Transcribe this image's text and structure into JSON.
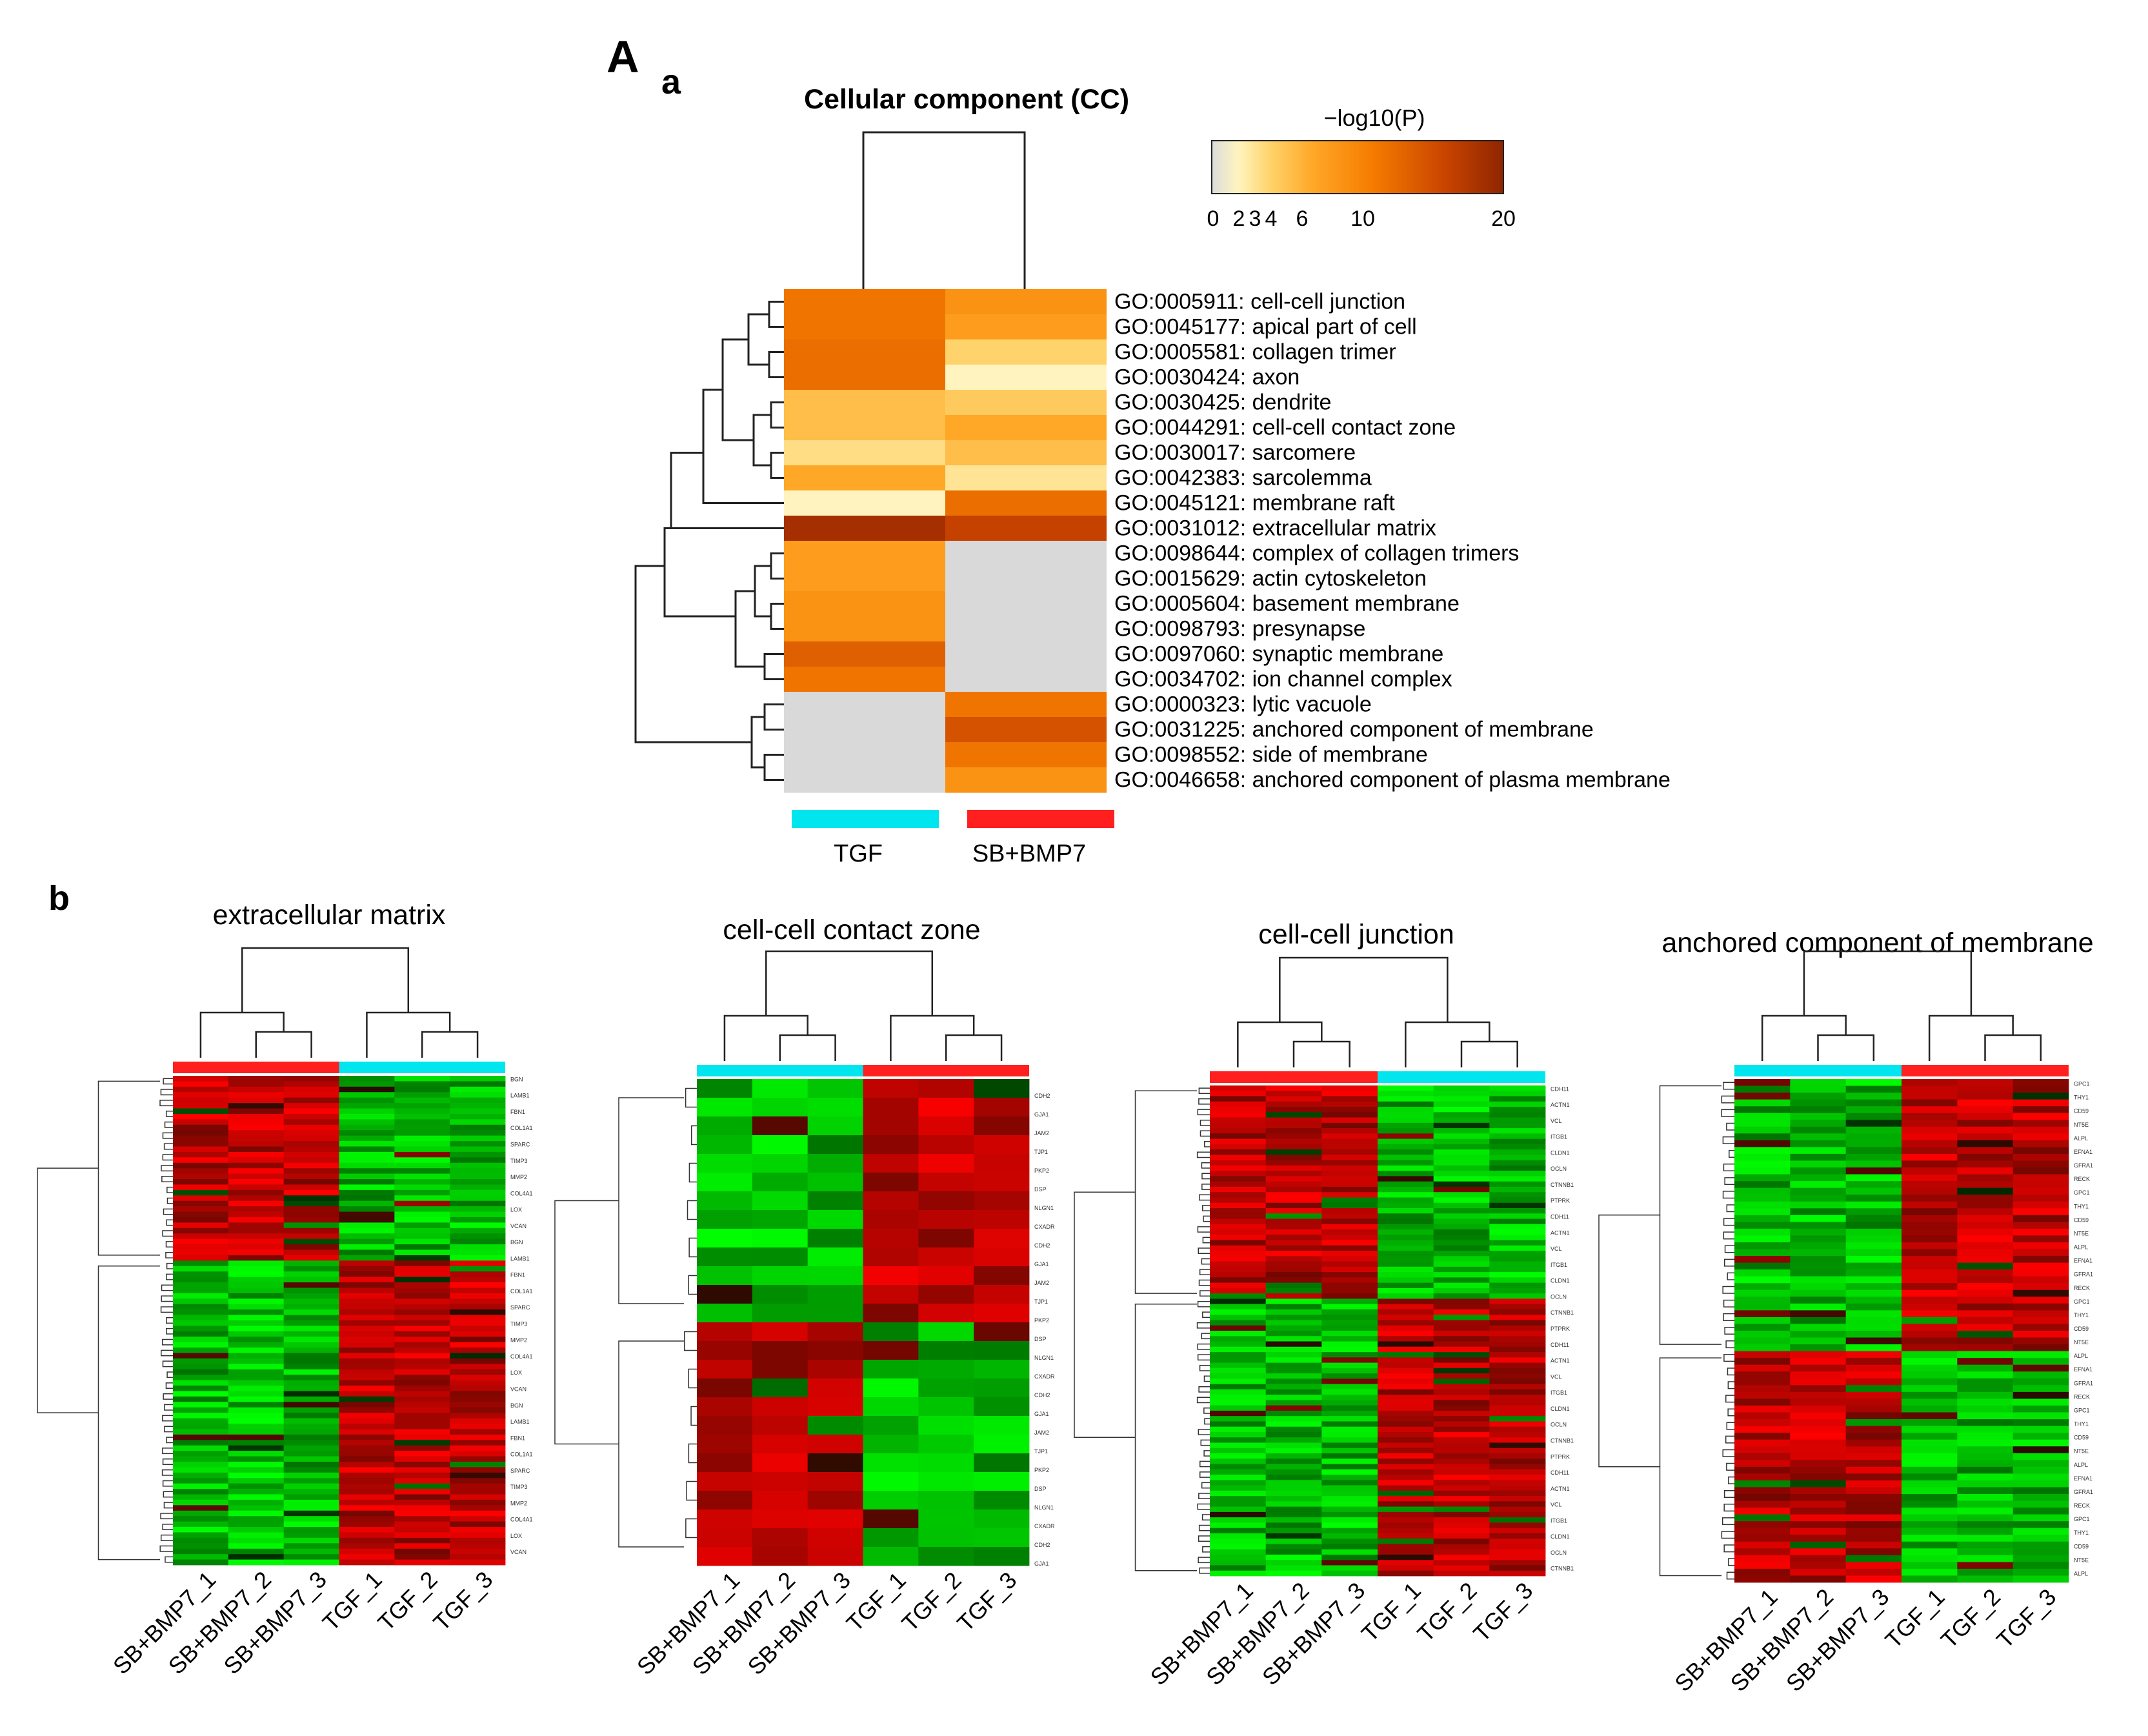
{
  "figure": {
    "panel_A": "A",
    "panel_a": "a",
    "panel_b": "b"
  },
  "chart_data": [
    {
      "type": "heatmap",
      "title": "Cellular component (CC)",
      "colorbar": {
        "title": "−log10(P)",
        "ticks": [
          0,
          2,
          3,
          4,
          6,
          10,
          20
        ],
        "colors": [
          "#dcdcdc",
          "#fff4c0",
          "#ffd36b",
          "#ffa726",
          "#f57c00",
          "#c94400",
          "#9c2a00"
        ]
      },
      "columns": [
        "TGF",
        "SB+BMP7"
      ],
      "column_colors": [
        "#00e5ee",
        "#ff1f1f"
      ],
      "na_color": "#d9d9d9",
      "rows": [
        {
          "label": "GO:0005911: cell-cell junction",
          "values": [
            6.5,
            5.0
          ]
        },
        {
          "label": "GO:0045177: apical part of cell",
          "values": [
            6.5,
            4.5
          ]
        },
        {
          "label": "GO:0005581: collagen trimer",
          "values": [
            7.0,
            3.0
          ]
        },
        {
          "label": "GO:0030424: axon",
          "values": [
            7.0,
            2.0
          ]
        },
        {
          "label": "GO:0030425: dendrite",
          "values": [
            3.5,
            3.2
          ]
        },
        {
          "label": "GO:0044291: cell-cell contact zone",
          "values": [
            3.5,
            4.0
          ]
        },
        {
          "label": "GO:0030017: sarcomere",
          "values": [
            2.7,
            3.5
          ]
        },
        {
          "label": "GO:0042383: sarcolemma",
          "values": [
            4.0,
            2.5
          ]
        },
        {
          "label": "GO:0045121: membrane raft",
          "values": [
            2.0,
            7.0
          ]
        },
        {
          "label": "GO:0031012: extracellular matrix",
          "values": [
            18.0,
            11.0
          ]
        },
        {
          "label": "GO:0098644: complex of collagen trimers",
          "values": [
            4.5,
            null
          ]
        },
        {
          "label": "GO:0015629: actin cytoskeleton",
          "values": [
            4.5,
            null
          ]
        },
        {
          "label": "GO:0005604: basement membrane",
          "values": [
            5.0,
            null
          ]
        },
        {
          "label": "GO:0098793: presynapse",
          "values": [
            5.0,
            null
          ]
        },
        {
          "label": "GO:0097060: synaptic membrane",
          "values": [
            8.0,
            null
          ]
        },
        {
          "label": "GO:0034702: ion channel complex",
          "values": [
            6.5,
            null
          ]
        },
        {
          "label": "GO:0000323: lytic vacuole",
          "values": [
            null,
            6.5
          ]
        },
        {
          "label": "GO:0031225: anchored component of membrane",
          "values": [
            null,
            9.0
          ]
        },
        {
          "label": "GO:0098552: side of membrane",
          "values": [
            null,
            6.5
          ]
        },
        {
          "label": "GO:0046658: anchored component of plasma membrane",
          "values": [
            null,
            5.0
          ]
        }
      ]
    },
    {
      "type": "heatmap",
      "title": "extracellular matrix",
      "samples": [
        "SB+BMP7_1",
        "SB+BMP7_2",
        "SB+BMP7_3",
        "TGF_1",
        "TGF_2",
        "TGF_3"
      ],
      "group_bar": [
        "red",
        "cyan"
      ],
      "row_label_examples": [
        "BGN",
        "LAMB1",
        "FBN1",
        "COL1A1",
        "SPARC",
        "TIMP3",
        "MMP2",
        "COL4A1",
        "LOX",
        "VCAN"
      ],
      "blocks": [
        {
          "rows": 34,
          "pattern": "up-in-SB+BMP7"
        },
        {
          "rows": 56,
          "pattern": "up-in-TGF"
        }
      ]
    },
    {
      "type": "heatmap",
      "title": "cell-cell contact zone",
      "samples": [
        "SB+BMP7_1",
        "SB+BMP7_2",
        "SB+BMP7_3",
        "TGF_1",
        "TGF_2",
        "TGF_3"
      ],
      "group_bar": [
        "cyan",
        "red"
      ],
      "row_label_examples": [
        "CDH2",
        "GJA1",
        "JAM2",
        "TJP1",
        "PKP2",
        "DSP",
        "NLGN1",
        "CXADR"
      ],
      "blocks": [
        {
          "rows": 13,
          "pattern": "up-in-TGF"
        },
        {
          "rows": 13,
          "pattern": "up-in-SB+BMP7"
        }
      ]
    },
    {
      "type": "heatmap",
      "title": "cell-cell junction",
      "samples": [
        "SB+BMP7_1",
        "SB+BMP7_2",
        "SB+BMP7_3",
        "TGF_1",
        "TGF_2",
        "TGF_3"
      ],
      "group_bar": [
        "red",
        "cyan"
      ],
      "row_label_examples": [
        "CDH11",
        "ACTN1",
        "VCL",
        "ITGB1",
        "CLDN1",
        "OCLN",
        "CTNNB1",
        "PTPRK"
      ],
      "blocks": [
        {
          "rows": 40,
          "pattern": "up-in-SB+BMP7"
        },
        {
          "rows": 52,
          "pattern": "up-in-TGF"
        }
      ]
    },
    {
      "type": "heatmap",
      "title": "anchored component of membrane",
      "samples": [
        "SB+BMP7_1",
        "SB+BMP7_2",
        "SB+BMP7_3",
        "TGF_1",
        "TGF_2",
        "TGF_3"
      ],
      "group_bar": [
        "cyan",
        "red"
      ],
      "row_label_examples": [
        "GPC1",
        "THY1",
        "CD59",
        "NT5E",
        "ALPL",
        "EFNA1",
        "GFRA1",
        "RECK"
      ],
      "blocks": [
        {
          "rows": 40,
          "pattern": "up-in-TGF"
        },
        {
          "rows": 34,
          "pattern": "up-in-SB+BMP7"
        }
      ]
    }
  ]
}
